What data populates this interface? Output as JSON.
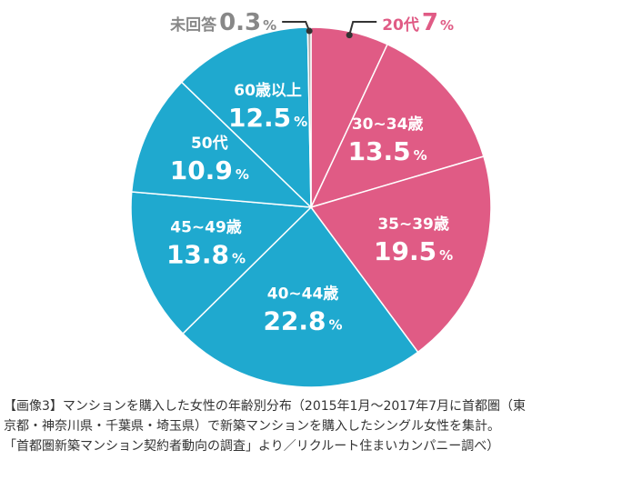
{
  "chart_data": {
    "type": "pie",
    "start": "top",
    "direction": "clockwise",
    "slices": [
      {
        "label": "20代",
        "value": 7,
        "display": "7",
        "color": "#e05b85"
      },
      {
        "label": "30~34歳",
        "value": 13.5,
        "display": "13.5",
        "color": "#e05b85"
      },
      {
        "label": "35~39歳",
        "value": 19.5,
        "display": "19.5",
        "color": "#e05b85"
      },
      {
        "label": "40~44歳",
        "value": 22.8,
        "display": "22.8",
        "color": "#1fa9cf"
      },
      {
        "label": "45~49歳",
        "value": 13.8,
        "display": "13.8",
        "color": "#1fa9cf"
      },
      {
        "label": "50代",
        "value": 10.9,
        "display": "10.9",
        "color": "#1fa9cf"
      },
      {
        "label": "60歳以上",
        "value": 12.5,
        "display": "12.5",
        "color": "#1fa9cf"
      },
      {
        "label": "未回答",
        "value": 0.3,
        "display": "0.3",
        "color": "#aaaaaa"
      }
    ],
    "unit": "%",
    "label_text_color": "#ffffff",
    "outside_label_colors": {
      "20代": "#e05b85",
      "未回答": "#888888"
    },
    "slice_border_color": "#ffffff"
  },
  "caption": {
    "lines": [
      "【画像3】マンションを購入した女性の年齢別分布（2015年1月～2017年7月に首都圏（東",
      "京都・神奈川県・千葉県・埼玉県）で新築マンションを購入したシングル女性を集計。",
      "「首都圏新築マンション契約者動向の調査」より／リクルート住まいカンパニー調べ）"
    ]
  }
}
